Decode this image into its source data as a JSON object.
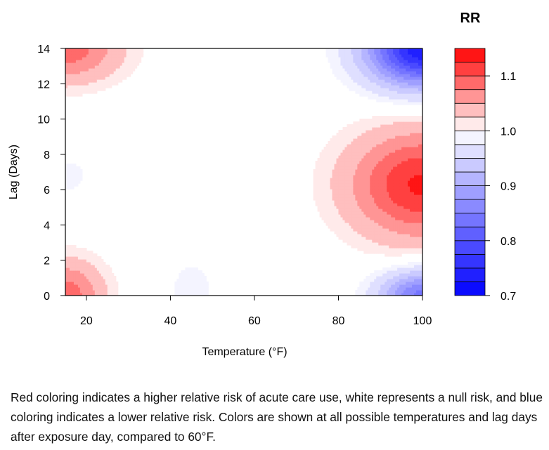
{
  "chart_data": {
    "type": "heatmap",
    "subtype": "filled-contour",
    "xlabel": "Temperature (°F)",
    "ylabel": "Lag (Days)",
    "xlim": [
      15,
      100
    ],
    "ylim": [
      0,
      14
    ],
    "x_ticks": [
      20,
      40,
      60,
      80,
      100
    ],
    "y_ticks": [
      0,
      2,
      4,
      6,
      8,
      10,
      12,
      14
    ],
    "legend": {
      "title": "RR",
      "placement": "right",
      "range": [
        0.7,
        1.15
      ],
      "step": 0.025,
      "ticks": [
        0.7,
        0.8,
        0.9,
        1.0,
        1.1
      ],
      "tick_labels": [
        "0.7",
        "0.8",
        "0.9",
        "1.0",
        "1.1"
      ],
      "low_color": "#0000ff",
      "mid_color": "#ffffff",
      "high_color": "#ff0000"
    },
    "reference_temperature": 60,
    "regions": [
      {
        "name": "hot-mid-lag-increase",
        "temp": 100,
        "lag": 6.3,
        "rr_peak": 1.13
      },
      {
        "name": "hot-long-lag-decrease",
        "temp": 100,
        "lag": 14,
        "rr_peak": 0.73
      },
      {
        "name": "hot-short-lag-decrease",
        "temp": 100,
        "lag": 0,
        "rr_peak": 0.84
      },
      {
        "name": "cold-long-lag-increase",
        "temp": 15,
        "lag": 14,
        "rr_peak": 1.09
      },
      {
        "name": "cold-short-lag-increase",
        "temp": 15,
        "lag": 0,
        "rr_peak": 1.09
      },
      {
        "name": "cold-mid-lag-slight-decrease",
        "temp": 15,
        "lag": 6.8,
        "rr_peak": 0.985
      },
      {
        "name": "mild-short-lag-slight-decrease",
        "temp": 45,
        "lag": 0,
        "rr_peak": 0.985
      }
    ]
  },
  "caption": "Red coloring indicates a higher relative risk of acute care use, white represents a null risk, and blue coloring indicates a lower relative risk. Colors are shown at all possible temperatures and lag days after exposure day, compared to 60°F."
}
